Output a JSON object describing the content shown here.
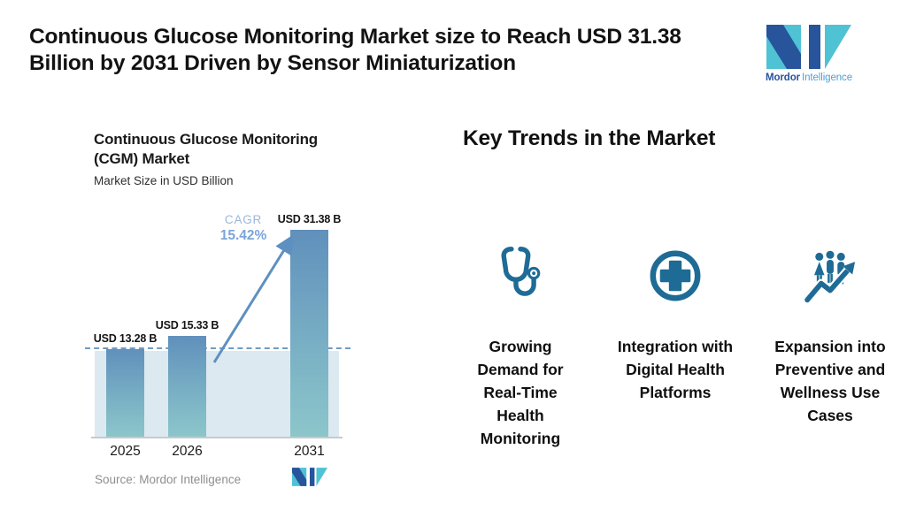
{
  "header": {
    "title": "Continuous Glucose Monitoring Market size to Reach USD 31.38\nBillion by 2031 Driven by Sensor Miniaturization",
    "brand": {
      "bold": "Mordor",
      "light": "Intelligence"
    }
  },
  "chart": {
    "title": "Continuous Glucose Monitoring\n(CGM) Market",
    "subtitle": "Market Size in USD Billion",
    "cagr_label": "CAGR",
    "cagr_value": "15.42%",
    "source": "Source: Mordor Intelligence"
  },
  "chart_data": {
    "type": "bar",
    "title": "Continuous Glucose Monitoring (CGM) Market",
    "subtitle": "Market Size in USD Billion",
    "unit": "USD Billion",
    "categories": [
      "2025",
      "2026",
      "2031"
    ],
    "values": [
      13.28,
      15.33,
      31.38
    ],
    "bar_labels": [
      "USD 13.28 B",
      "USD 15.33 B",
      "USD 31.38 B"
    ],
    "annotations": {
      "cagr": "15.42%",
      "baseline_dash_at_value": 13.28
    },
    "ylim": [
      0,
      33
    ],
    "grid": false,
    "legend": "none"
  },
  "trends": {
    "title": "Key Trends in the Market",
    "items": [
      {
        "icon": "stethoscope-icon",
        "label": "Growing\nDemand for\nReal-Time\nHealth\nMonitoring"
      },
      {
        "icon": "medical-cross-circle-icon",
        "label": "Integration with\nDigital Health\nPlatforms"
      },
      {
        "icon": "people-growth-arrow-icon",
        "label": "Expansion into\nPreventive and\nWellness Use\nCases"
      }
    ]
  },
  "colors": {
    "icon_accent": "#1E6B96",
    "bar_gradient_top": "#6090BC",
    "bar_gradient_bottom": "#8CC6CA",
    "baseline_band": "#DDE9F1",
    "dashed_line": "#6F9CC4",
    "cagr_text": "#7AA5D8",
    "arrow": "#5D90C1",
    "logo_navy": "#27549B",
    "logo_teal": "#4FC2D4",
    "source_text": "#8E8E8E"
  }
}
